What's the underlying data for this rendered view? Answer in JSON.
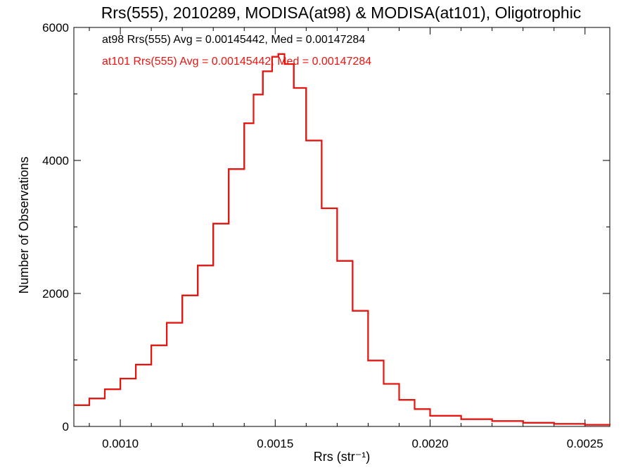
{
  "chart_data": {
    "type": "line",
    "title": "Rrs(555), 2010289, MODISA(at98) & MODISA(at101), Oligotrophic",
    "xlabel": "Rrs (str⁻¹)",
    "ylabel": "Number of Observations",
    "xlim": [
      0.00085,
      0.00258
    ],
    "ylim": [
      0,
      6000
    ],
    "x_ticks": [
      0.001,
      0.0015,
      0.002,
      0.0025
    ],
    "x_tick_labels": [
      "0.0010",
      "0.0015",
      "0.0020",
      "0.0025"
    ],
    "y_ticks": [
      0,
      2000,
      4000,
      6000
    ],
    "y_tick_labels": [
      "0",
      "2000",
      "4000",
      "6000"
    ],
    "grid": false,
    "legend_placement": "top-left",
    "series": [
      {
        "name": "at98 Rrs(555) Avg = 0.00145442, Med = 0.00147284",
        "color": "#000000",
        "x": [
          0.00085,
          0.0009,
          0.00095,
          0.001,
          0.00105,
          0.0011,
          0.00115,
          0.0012,
          0.00125,
          0.0013,
          0.00135,
          0.0014,
          0.00143,
          0.00146,
          0.00149,
          0.00151,
          0.00153,
          0.00156,
          0.0016,
          0.00165,
          0.0017,
          0.00175,
          0.0018,
          0.00185,
          0.0019,
          0.00195,
          0.002,
          0.0021,
          0.0022,
          0.0023,
          0.0024,
          0.0025,
          0.00258
        ],
        "y": [
          320,
          420,
          560,
          720,
          930,
          1220,
          1560,
          1970,
          2420,
          3050,
          3870,
          4560,
          4990,
          5340,
          5560,
          5600,
          5450,
          5090,
          4300,
          3280,
          2490,
          1740,
          990,
          640,
          400,
          260,
          160,
          110,
          80,
          55,
          38,
          25,
          20
        ]
      },
      {
        "name": "at101 Rrs(555) Avg = 0.00145442, Med = 0.00147284",
        "color": "#e8140f",
        "x": [
          0.00085,
          0.0009,
          0.00095,
          0.001,
          0.00105,
          0.0011,
          0.00115,
          0.0012,
          0.00125,
          0.0013,
          0.00135,
          0.0014,
          0.00143,
          0.00146,
          0.00149,
          0.00151,
          0.00153,
          0.00156,
          0.0016,
          0.00165,
          0.0017,
          0.00175,
          0.0018,
          0.00185,
          0.0019,
          0.00195,
          0.002,
          0.0021,
          0.0022,
          0.0023,
          0.0024,
          0.0025,
          0.00258
        ],
        "y": [
          320,
          420,
          560,
          720,
          930,
          1220,
          1560,
          1970,
          2420,
          3050,
          3870,
          4560,
          4990,
          5340,
          5560,
          5600,
          5450,
          5090,
          4300,
          3280,
          2490,
          1740,
          990,
          640,
          400,
          260,
          160,
          110,
          80,
          55,
          38,
          25,
          20
        ]
      }
    ]
  }
}
